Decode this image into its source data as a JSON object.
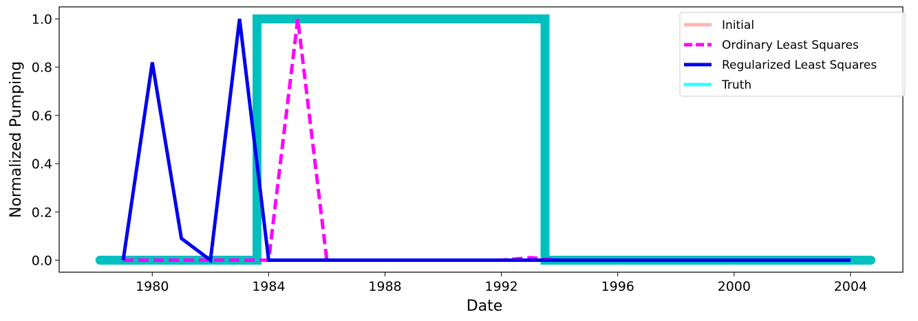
{
  "chart_data": {
    "type": "line",
    "title": "",
    "xlabel": "Date",
    "ylabel": "Normalized Pumping",
    "xlim": [
      1976.8,
      2005.8
    ],
    "ylim": [
      -0.05,
      1.05
    ],
    "x_ticks": [
      1980,
      1984,
      1988,
      1992,
      1996,
      2000,
      2004
    ],
    "y_ticks": [
      0.0,
      0.2,
      0.4,
      0.6,
      0.8,
      1.0
    ],
    "y_tick_labels": [
      "0.0",
      "0.2",
      "0.4",
      "0.6",
      "0.8",
      "1.0"
    ],
    "grid": false,
    "legend_position": "top-right",
    "series": [
      {
        "name": "Initial",
        "color": "#ffb6b6",
        "style": "solid",
        "x": [
          1978.2,
          2004.7
        ],
        "y": [
          0,
          0
        ]
      },
      {
        "name": "Ordinary Least Squares",
        "color": "#ff00ff",
        "style": "dashed",
        "x": [
          1979,
          1980,
          1981,
          1982,
          1983,
          1983.5,
          1984,
          1985,
          1986,
          1987,
          1988,
          1989,
          1990,
          1991,
          1992,
          1993,
          1994,
          1995,
          1996,
          1997,
          1998,
          1999,
          2000,
          2001,
          2002,
          2003,
          2004
        ],
        "y": [
          0,
          0,
          0,
          0,
          0,
          0,
          0,
          1.0,
          0,
          0,
          0,
          0,
          0,
          0,
          0,
          0.01,
          0,
          0,
          0,
          0,
          0,
          0,
          0,
          0,
          0,
          0,
          0
        ]
      },
      {
        "name": "Regularized Least Squares",
        "color": "#0000ee",
        "style": "solid",
        "x": [
          1979,
          1980,
          1981,
          1982,
          1983,
          1984,
          1985,
          1986,
          1987,
          1988,
          1989,
          1990,
          1991,
          1992,
          1993,
          1994,
          1995,
          1996,
          1997,
          1998,
          1999,
          2000,
          2001,
          2002,
          2003,
          2004
        ],
        "y": [
          0,
          0.82,
          0.09,
          0,
          1.0,
          0,
          0,
          0,
          0,
          0,
          0,
          0,
          0,
          0,
          0,
          0,
          0,
          0,
          0,
          0,
          0,
          0,
          0,
          0,
          0,
          0
        ]
      },
      {
        "name": "Truth",
        "color": "#33ffff",
        "plot_color": "#00bfbf",
        "style": "solid",
        "x": [
          1978.2,
          1983.6,
          1983.6,
          1993.5,
          1993.5,
          2004.7
        ],
        "y": [
          0,
          0,
          1,
          1,
          0,
          0
        ]
      }
    ]
  }
}
